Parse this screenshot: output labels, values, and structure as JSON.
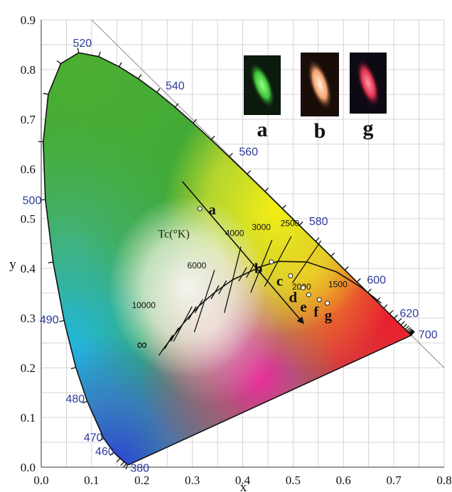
{
  "chart_data": {
    "type": "scatter",
    "title": "",
    "xlabel": "x",
    "ylabel": "y",
    "xlim": [
      0.0,
      0.8
    ],
    "ylim": [
      0.0,
      0.9
    ],
    "grid": true,
    "x_ticks": [
      "0.0",
      "0.1",
      "0.2",
      "0.3",
      "0.4",
      "0.5",
      "0.6",
      "0.7",
      "0.8"
    ],
    "y_ticks": [
      "0.0",
      "0.1",
      "0.2",
      "0.3",
      "0.4",
      "0.5",
      "0.6",
      "0.7",
      "0.8",
      "0.9"
    ],
    "wavelength_labels": [
      {
        "text": "380",
        "x": 0.174,
        "y": 0.005
      },
      {
        "text": "460",
        "x": 0.144,
        "y": 0.03
      },
      {
        "text": "470",
        "x": 0.124,
        "y": 0.058
      },
      {
        "text": "480",
        "x": 0.091,
        "y": 0.133
      },
      {
        "text": "490",
        "x": 0.045,
        "y": 0.295
      },
      {
        "text": "500",
        "x": 0.008,
        "y": 0.538
      },
      {
        "text": "520",
        "x": 0.074,
        "y": 0.834
      },
      {
        "text": "540",
        "x": 0.23,
        "y": 0.754
      },
      {
        "text": "560",
        "x": 0.373,
        "y": 0.624
      },
      {
        "text": "580",
        "x": 0.512,
        "y": 0.487
      },
      {
        "text": "600",
        "x": 0.627,
        "y": 0.372
      },
      {
        "text": "620",
        "x": 0.692,
        "y": 0.308
      },
      {
        "text": "700",
        "x": 0.735,
        "y": 0.265
      }
    ],
    "locus": {
      "x": [
        0.1741,
        0.1714,
        0.1689,
        0.1644,
        0.1566,
        0.144,
        0.1241,
        0.0913,
        0.0687,
        0.0454,
        0.0235,
        0.0082,
        0.0039,
        0.0139,
        0.0389,
        0.0743,
        0.1142,
        0.1547,
        0.1929,
        0.2296,
        0.2658,
        0.3016,
        0.3373,
        0.3731,
        0.4087,
        0.4441,
        0.4788,
        0.5125,
        0.5448,
        0.5752,
        0.6029,
        0.627,
        0.6482,
        0.6658,
        0.6801,
        0.6915,
        0.7006,
        0.7079,
        0.714,
        0.719,
        0.723,
        0.726,
        0.7283,
        0.73,
        0.7311,
        0.732,
        0.7327,
        0.7334,
        0.734,
        0.7344,
        0.7347
      ],
      "y": [
        0.005,
        0.0051,
        0.0069,
        0.0109,
        0.0177,
        0.0297,
        0.0578,
        0.1327,
        0.2007,
        0.295,
        0.4127,
        0.5384,
        0.6548,
        0.7502,
        0.812,
        0.8338,
        0.8262,
        0.8059,
        0.7816,
        0.7543,
        0.7243,
        0.6923,
        0.6589,
        0.6245,
        0.5896,
        0.5547,
        0.5202,
        0.4866,
        0.4544,
        0.4242,
        0.3965,
        0.3725,
        0.3514,
        0.334,
        0.3197,
        0.3083,
        0.2993,
        0.292,
        0.2859,
        0.2809,
        0.277,
        0.274,
        0.2717,
        0.27,
        0.2689,
        0.268,
        0.2673,
        0.2666,
        0.266,
        0.2656,
        0.2653
      ]
    },
    "planckian_locus": {
      "x": [
        0.24,
        0.253,
        0.265,
        0.281,
        0.3,
        0.313,
        0.324,
        0.345,
        0.38,
        0.437,
        0.47,
        0.527,
        0.586,
        0.635,
        0.675
      ],
      "y": [
        0.234,
        0.252,
        0.267,
        0.288,
        0.31,
        0.324,
        0.334,
        0.352,
        0.377,
        0.404,
        0.414,
        0.413,
        0.393,
        0.362,
        0.33
      ]
    },
    "temperature_labels": [
      "10000",
      "6000",
      "4000",
      "3000",
      "2500",
      "2000",
      "1500",
      "∞"
    ],
    "temperature_axis_label": "Tc(°K)",
    "series": [
      {
        "points": [
          {
            "label": "a",
            "x": 0.315,
            "y": 0.52
          },
          {
            "label": "b",
            "x": 0.457,
            "y": 0.413
          },
          {
            "label": "c",
            "x": 0.495,
            "y": 0.385
          },
          {
            "label": "d",
            "x": 0.52,
            "y": 0.361
          },
          {
            "label": "e",
            "x": 0.531,
            "y": 0.347
          },
          {
            "label": "f",
            "x": 0.552,
            "y": 0.337
          },
          {
            "label": "g",
            "x": 0.568,
            "y": 0.33
          }
        ]
      }
    ],
    "arrow": {
      "from": [
        0.28,
        0.575
      ],
      "to": [
        0.52,
        0.29
      ]
    },
    "insets": [
      {
        "label": "a",
        "glow": "#3fc23a"
      },
      {
        "label": "b",
        "glow": "#f4a070"
      },
      {
        "label": "g",
        "glow": "#e03050"
      }
    ]
  }
}
